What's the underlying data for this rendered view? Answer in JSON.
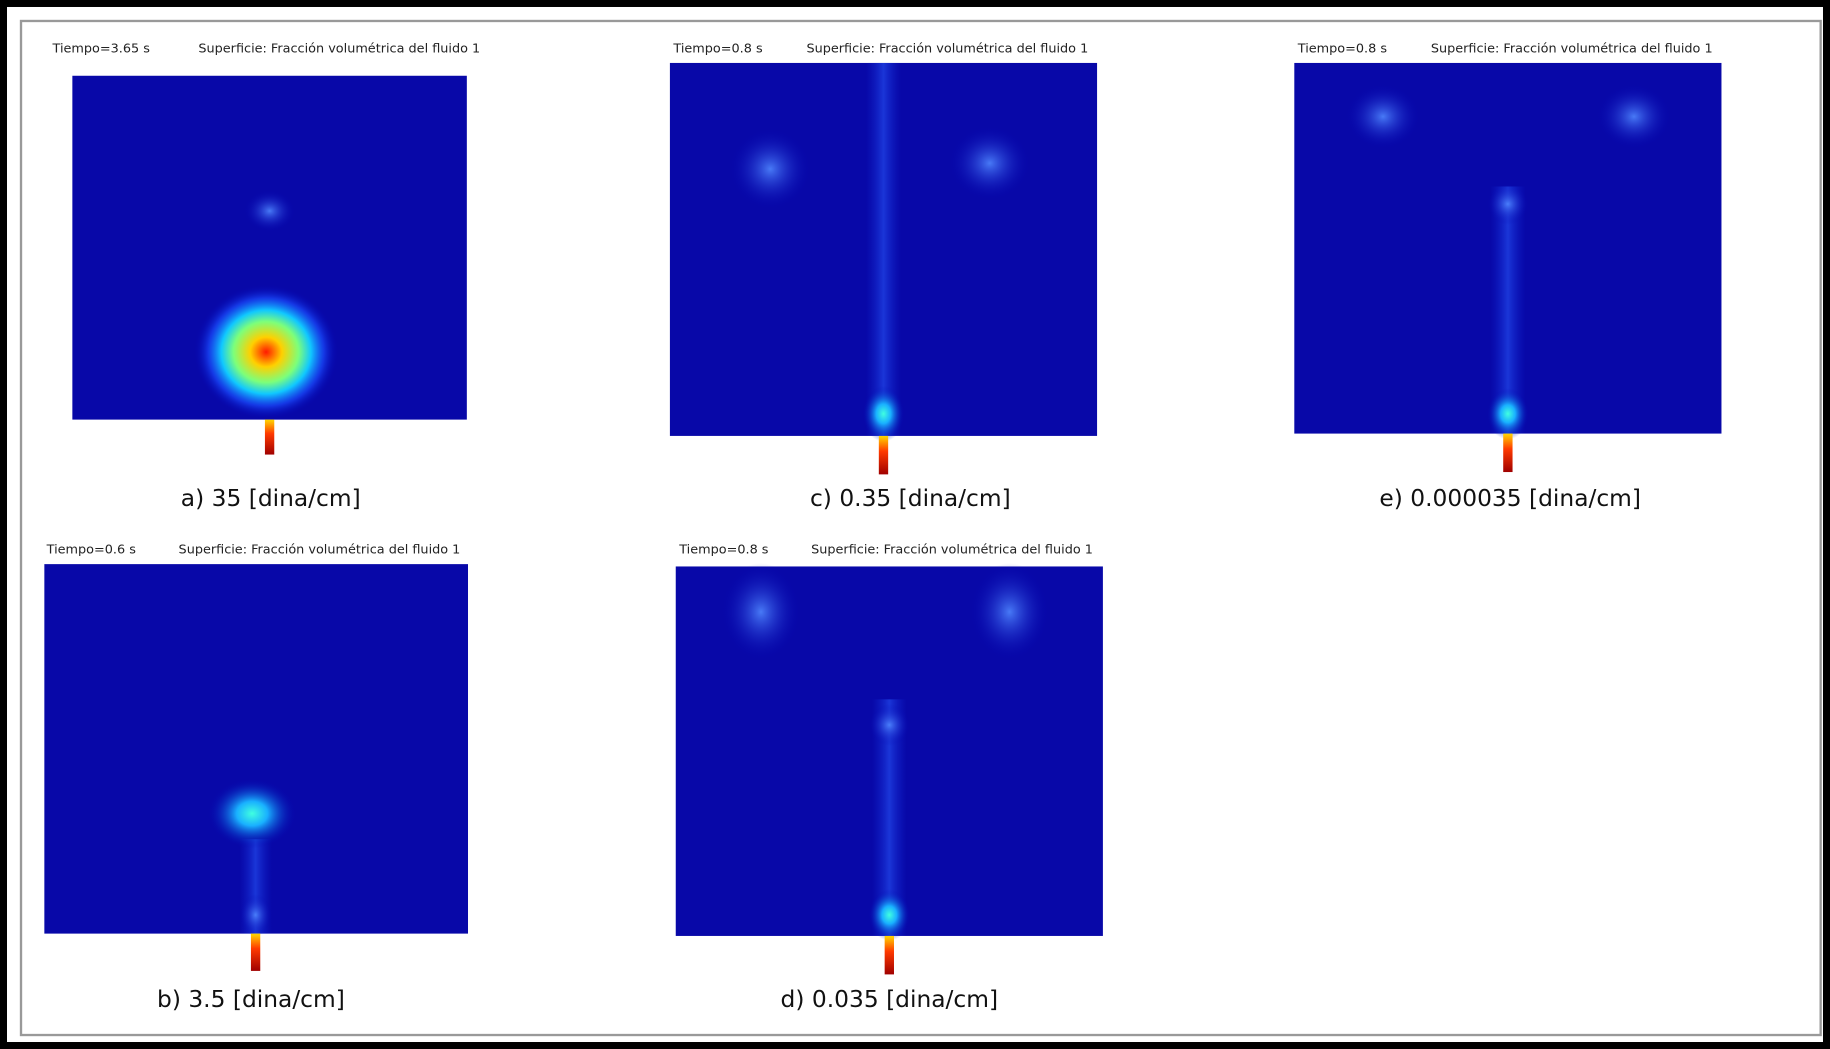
{
  "panels": [
    {
      "time": "Tiempo=3.65 s",
      "surface": "Superficie: Fracción volumétrica del fluido 1",
      "caption": "a) 35 [dina/cm]"
    },
    {
      "time": "Tiempo=0.8 s",
      "surface": "Superficie: Fracción volumétrica del fluido 1",
      "caption": "c) 0.35 [dina/cm]"
    },
    {
      "time": "Tiempo=0.8 s",
      "surface": "Superficie: Fracción volumétrica del fluido 1",
      "caption": "e) 0.000035 [dina/cm]"
    },
    {
      "time": "Tiempo=0.6 s",
      "surface": "Superficie: Fracción volumétrica del fluido 1",
      "caption": "b) 3.5 [dina/cm]"
    },
    {
      "time": "Tiempo=0.8 s",
      "surface": "Superficie: Fracción volumétrica del fluido 1",
      "caption": "d) 0.035 [dina/cm]"
    }
  ]
}
